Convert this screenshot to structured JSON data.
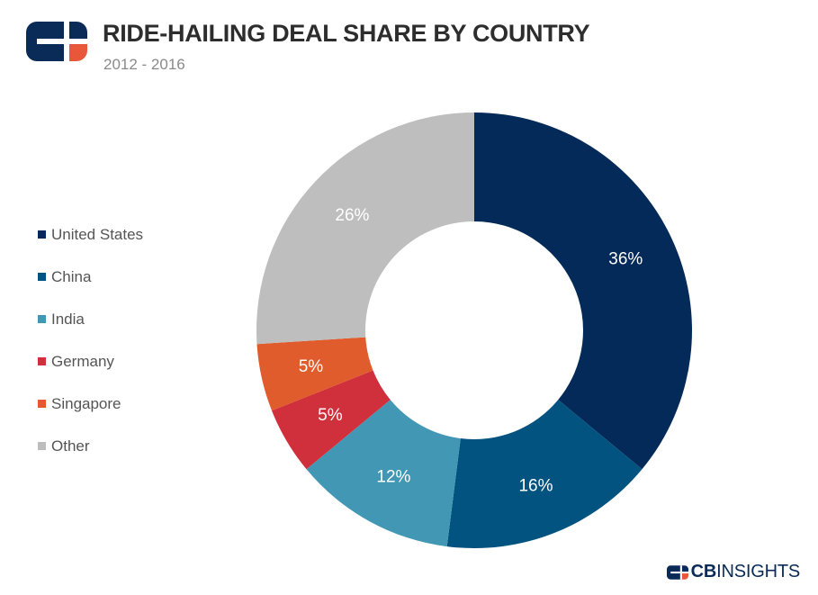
{
  "header": {
    "title": "RIDE-HAILING DEAL SHARE BY COUNTRY",
    "subtitle": "2012 - 2016"
  },
  "brand": {
    "cb": "CB",
    "insights": "INSIGHTS"
  },
  "colors": {
    "logo_navy": "#0a2a57",
    "logo_orange": "#e8573a"
  },
  "chart_data": {
    "type": "pie",
    "variant": "donut",
    "title": "RIDE-HAILING DEAL SHARE BY COUNTRY",
    "subtitle": "2012 - 2016",
    "legend_position": "left",
    "unit": "%",
    "categories": [
      "United States",
      "China",
      "India",
      "Germany",
      "Singapore",
      "Other"
    ],
    "values": [
      36,
      16,
      12,
      5,
      5,
      26
    ],
    "labels": [
      "36%",
      "16%",
      "12%",
      "5%",
      "5%",
      "26%"
    ],
    "colors": [
      "#032a58",
      "#035381",
      "#4297b5",
      "#d0303c",
      "#e15c2c",
      "#bebebe"
    ]
  }
}
